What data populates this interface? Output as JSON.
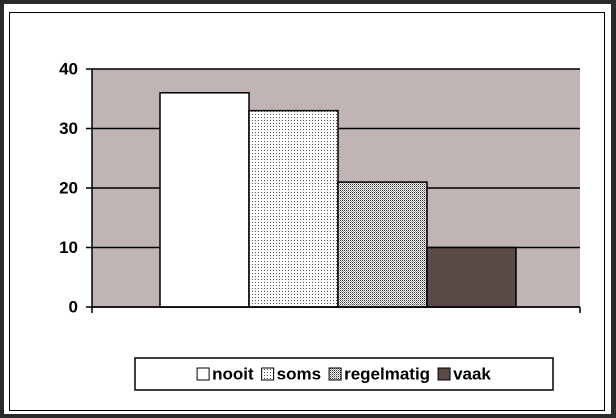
{
  "chart_data": {
    "type": "bar",
    "series": [
      {
        "name": "nooit",
        "color": "#ffffff",
        "values": [
          36
        ]
      },
      {
        "name": "soms",
        "color": "#ffffff",
        "pattern": "dots",
        "values": [
          33
        ]
      },
      {
        "name": "regelmatig",
        "color": "#ffffff",
        "pattern": "grid",
        "values": [
          21
        ]
      },
      {
        "name": "vaak",
        "color": "#5a4a48",
        "values": [
          10
        ]
      }
    ],
    "ylim": [
      0,
      40
    ],
    "yticks": [
      0,
      10,
      20,
      30,
      40
    ],
    "grid": true,
    "plot_background": "#c0b4b4",
    "legend": "bottom"
  }
}
